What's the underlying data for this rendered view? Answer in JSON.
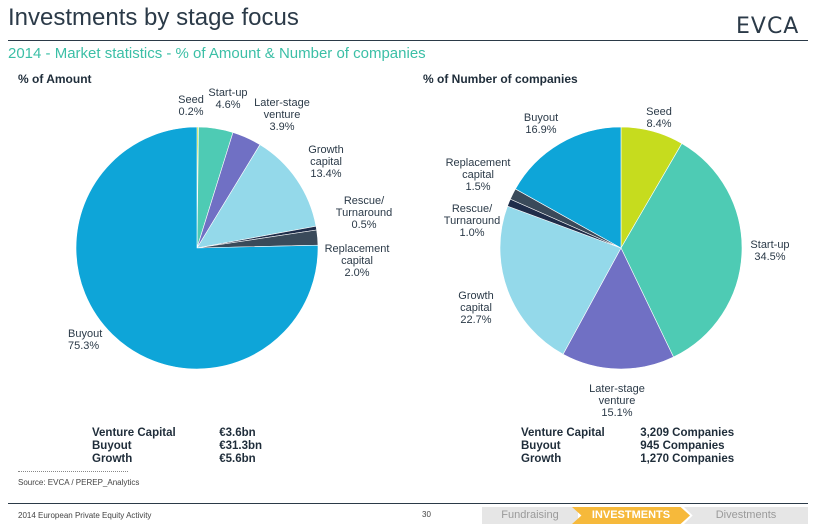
{
  "header": {
    "title": "Investments by stage focus",
    "logo": "EVCA",
    "subtitle": "2014 - Market statistics - % of Amount & Number of companies"
  },
  "chart_data": [
    {
      "type": "pie",
      "title": "% of Amount",
      "slices": [
        {
          "name": "Seed",
          "value": 0.2,
          "label": "0.2%",
          "color": "#c6dc1e"
        },
        {
          "name": "Start-up",
          "value": 4.6,
          "label": "4.6%",
          "color": "#4ecbb4"
        },
        {
          "name": "Later-stage venture",
          "value": 3.9,
          "label": "3.9%",
          "color": "#7070c4"
        },
        {
          "name": "Growth capital",
          "value": 13.4,
          "label": "13.4%",
          "color": "#94d9ea"
        },
        {
          "name": "Rescue/ Turnaround",
          "value": 0.5,
          "label": "0.5%",
          "color": "#1f2d4a"
        },
        {
          "name": "Replacement capital",
          "value": 2.0,
          "label": "2.0%",
          "color": "#3a4a5a"
        },
        {
          "name": "Buyout",
          "value": 75.3,
          "label": "75.3%",
          "color": "#0ea5d8"
        }
      ]
    },
    {
      "type": "pie",
      "title": "% of Number of companies",
      "slices": [
        {
          "name": "Seed",
          "value": 8.4,
          "label": "8.4%",
          "color": "#c6dc1e"
        },
        {
          "name": "Start-up",
          "value": 34.5,
          "label": "34.5%",
          "color": "#4ecbb4"
        },
        {
          "name": "Later-stage venture",
          "value": 15.1,
          "label": "15.1%",
          "color": "#7070c4"
        },
        {
          "name": "Growth capital",
          "value": 22.7,
          "label": "22.7%",
          "color": "#94d9ea"
        },
        {
          "name": "Rescue/ Turnaround",
          "value": 1.0,
          "label": "1.0%",
          "color": "#1f2d4a"
        },
        {
          "name": "Replacement capital",
          "value": 1.5,
          "label": "1.5%",
          "color": "#3a4a5a"
        },
        {
          "name": "Buyout",
          "value": 16.9,
          "label": "16.9%",
          "color": "#0ea5d8"
        }
      ]
    }
  ],
  "labels": {
    "amount": {
      "seed": [
        "Seed",
        "0.2%"
      ],
      "startup": [
        "Start-up",
        "4.6%"
      ],
      "later": [
        "Later-stage",
        "venture",
        "3.9%"
      ],
      "growth": [
        "Growth",
        "capital",
        "13.4%"
      ],
      "rescue": [
        "Rescue/",
        "Turnaround",
        "0.5%"
      ],
      "replacement": [
        "Replacement",
        "capital",
        "2.0%"
      ],
      "buyout": [
        "Buyout",
        "75.3%"
      ]
    },
    "count": {
      "seed": [
        "Seed",
        "8.4%"
      ],
      "startup": [
        "Start-up",
        "34.5%"
      ],
      "later": [
        "Later-stage",
        "venture",
        "15.1%"
      ],
      "growth": [
        "Growth",
        "capital",
        "22.7%"
      ],
      "rescue": [
        "Rescue/",
        "Turnaround",
        "1.0%"
      ],
      "replacement": [
        "Replacement",
        "capital",
        "1.5%"
      ],
      "buyout": [
        "Buyout",
        "16.9%"
      ]
    }
  },
  "amount_table": [
    {
      "key": "Venture Capital",
      "value": "€3.6bn"
    },
    {
      "key": "Buyout",
      "value": "€31.3bn"
    },
    {
      "key": "Growth",
      "value": "€5.6bn"
    }
  ],
  "count_table": [
    {
      "key": "Venture Capital",
      "value": "3,209 Companies"
    },
    {
      "key": "Buyout",
      "value": "945 Companies"
    },
    {
      "key": "Growth",
      "value": "1,270 Companies"
    }
  ],
  "footer": {
    "source": "Source: EVCA / PEREP_Analytics",
    "report": "2014 European Private Equity Activity",
    "page": "30",
    "nav": [
      "Fundraising",
      "INVESTMENTS",
      "Divestments"
    ]
  }
}
